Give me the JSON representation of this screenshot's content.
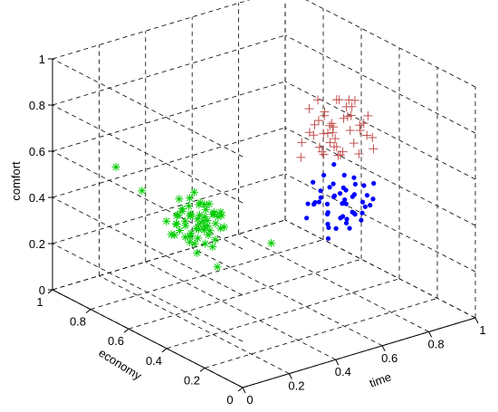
{
  "chart_data": {
    "type": "scatter",
    "projection": "3d",
    "xlabel": "time",
    "ylabel": "economy",
    "zlabel": "comfort",
    "xlim": [
      0,
      1
    ],
    "ylim": [
      0,
      1
    ],
    "zlim": [
      0,
      1
    ],
    "xticks": [
      "0",
      "0.2",
      "0.4",
      "0.6",
      "0.8",
      "1"
    ],
    "yticks": [
      "0",
      "0.2",
      "0.4",
      "0.6",
      "0.8",
      "1"
    ],
    "zticks": [
      "0",
      "0.2",
      "0.4",
      "0.6",
      "0.8",
      "1"
    ],
    "grid": true,
    "series": [
      {
        "marker": "plus",
        "color": "#c0504d",
        "points": [
          [
            0.62,
            0.3,
            0.82
          ],
          [
            0.68,
            0.28,
            0.85
          ],
          [
            0.72,
            0.35,
            0.8
          ],
          [
            0.58,
            0.25,
            0.78
          ],
          [
            0.65,
            0.4,
            0.88
          ],
          [
            0.75,
            0.3,
            0.76
          ],
          [
            0.6,
            0.33,
            0.72
          ],
          [
            0.7,
            0.22,
            0.84
          ],
          [
            0.66,
            0.36,
            0.75
          ],
          [
            0.55,
            0.3,
            0.8
          ],
          [
            0.78,
            0.38,
            0.82
          ],
          [
            0.64,
            0.27,
            0.7
          ],
          [
            0.71,
            0.31,
            0.9
          ],
          [
            0.59,
            0.37,
            0.77
          ],
          [
            0.69,
            0.26,
            0.74
          ],
          [
            0.63,
            0.34,
            0.86
          ],
          [
            0.74,
            0.29,
            0.79
          ],
          [
            0.57,
            0.28,
            0.73
          ],
          [
            0.67,
            0.39,
            0.81
          ],
          [
            0.73,
            0.24,
            0.77
          ],
          [
            0.61,
            0.32,
            0.69
          ],
          [
            0.76,
            0.34,
            0.87
          ],
          [
            0.54,
            0.35,
            0.75
          ],
          [
            0.65,
            0.23,
            0.82
          ],
          [
            0.7,
            0.37,
            0.71
          ],
          [
            0.58,
            0.31,
            0.85
          ],
          [
            0.72,
            0.27,
            0.68
          ],
          [
            0.66,
            0.3,
            0.92
          ],
          [
            0.62,
            0.38,
            0.79
          ],
          [
            0.77,
            0.26,
            0.74
          ],
          [
            0.56,
            0.26,
            0.82
          ],
          [
            0.68,
            0.33,
            0.66
          ],
          [
            0.74,
            0.36,
            0.84
          ],
          [
            0.6,
            0.24,
            0.76
          ],
          [
            0.69,
            0.35,
            0.89
          ],
          [
            0.63,
            0.29,
            0.73
          ],
          [
            0.8,
            0.32,
            0.8
          ],
          [
            0.52,
            0.33,
            0.7
          ],
          [
            0.67,
            0.25,
            0.87
          ],
          [
            0.71,
            0.4,
            0.76
          ],
          [
            0.64,
            0.31,
            0.78
          ],
          [
            0.58,
            0.36,
            0.88
          ],
          [
            0.75,
            0.23,
            0.71
          ],
          [
            0.61,
            0.27,
            0.83
          ],
          [
            0.7,
            0.33,
            0.67
          ]
        ]
      },
      {
        "marker": "dot",
        "color": "#0000ff",
        "points": [
          [
            0.62,
            0.28,
            0.52
          ],
          [
            0.68,
            0.32,
            0.5
          ],
          [
            0.72,
            0.25,
            0.48
          ],
          [
            0.58,
            0.3,
            0.55
          ],
          [
            0.65,
            0.35,
            0.45
          ],
          [
            0.75,
            0.28,
            0.53
          ],
          [
            0.6,
            0.22,
            0.46
          ],
          [
            0.7,
            0.38,
            0.51
          ],
          [
            0.66,
            0.26,
            0.42
          ],
          [
            0.55,
            0.33,
            0.49
          ],
          [
            0.78,
            0.3,
            0.47
          ],
          [
            0.64,
            0.24,
            0.56
          ],
          [
            0.71,
            0.34,
            0.44
          ],
          [
            0.59,
            0.27,
            0.4
          ],
          [
            0.69,
            0.31,
            0.58
          ],
          [
            0.63,
            0.36,
            0.48
          ],
          [
            0.74,
            0.22,
            0.5
          ],
          [
            0.57,
            0.25,
            0.43
          ],
          [
            0.67,
            0.29,
            0.54
          ],
          [
            0.73,
            0.37,
            0.42
          ],
          [
            0.61,
            0.32,
            0.6
          ],
          [
            0.76,
            0.26,
            0.45
          ],
          [
            0.54,
            0.28,
            0.52
          ],
          [
            0.65,
            0.21,
            0.47
          ],
          [
            0.7,
            0.33,
            0.39
          ],
          [
            0.58,
            0.34,
            0.57
          ],
          [
            0.72,
            0.29,
            0.41
          ],
          [
            0.66,
            0.23,
            0.53
          ],
          [
            0.62,
            0.31,
            0.44
          ],
          [
            0.77,
            0.35,
            0.5
          ],
          [
            0.56,
            0.24,
            0.48
          ],
          [
            0.68,
            0.27,
            0.37
          ],
          [
            0.74,
            0.32,
            0.55
          ],
          [
            0.6,
            0.36,
            0.46
          ],
          [
            0.69,
            0.2,
            0.49
          ],
          [
            0.63,
            0.28,
            0.38
          ],
          [
            0.8,
            0.29,
            0.52
          ],
          [
            0.52,
            0.3,
            0.45
          ],
          [
            0.67,
            0.34,
            0.62
          ],
          [
            0.71,
            0.24,
            0.44
          ],
          [
            0.64,
            0.3,
            0.51
          ],
          [
            0.58,
            0.26,
            0.36
          ],
          [
            0.75,
            0.33,
            0.47
          ],
          [
            0.61,
            0.21,
            0.54
          ],
          [
            0.7,
            0.28,
            0.43
          ],
          [
            0.66,
            0.35,
            0.52
          ],
          [
            0.73,
            0.27,
            0.39
          ],
          [
            0.59,
            0.32,
            0.49
          ],
          [
            0.65,
            0.25,
            0.41
          ],
          [
            0.69,
            0.3,
            0.46
          ]
        ]
      },
      {
        "marker": "asterisk",
        "color": "#00cc00",
        "points": [
          [
            0.28,
            0.58,
            0.4
          ],
          [
            0.32,
            0.62,
            0.35
          ],
          [
            0.25,
            0.55,
            0.38
          ],
          [
            0.3,
            0.65,
            0.42
          ],
          [
            0.35,
            0.6,
            0.32
          ],
          [
            0.22,
            0.6,
            0.36
          ],
          [
            0.38,
            0.58,
            0.4
          ],
          [
            0.27,
            0.68,
            0.34
          ],
          [
            0.33,
            0.52,
            0.37
          ],
          [
            0.29,
            0.63,
            0.3
          ],
          [
            0.24,
            0.57,
            0.43
          ],
          [
            0.36,
            0.64,
            0.36
          ],
          [
            0.31,
            0.56,
            0.33
          ],
          [
            0.26,
            0.66,
            0.39
          ],
          [
            0.34,
            0.61,
            0.41
          ],
          [
            0.2,
            0.62,
            0.34
          ],
          [
            0.4,
            0.6,
            0.37
          ],
          [
            0.28,
            0.54,
            0.31
          ],
          [
            0.32,
            0.67,
            0.44
          ],
          [
            0.37,
            0.55,
            0.35
          ],
          [
            0.23,
            0.64,
            0.32
          ],
          [
            0.3,
            0.59,
            0.46
          ],
          [
            0.35,
            0.66,
            0.3
          ],
          [
            0.26,
            0.52,
            0.4
          ],
          [
            0.33,
            0.63,
            0.38
          ],
          [
            0.29,
            0.7,
            0.36
          ],
          [
            0.21,
            0.56,
            0.42
          ],
          [
            0.39,
            0.62,
            0.33
          ],
          [
            0.27,
            0.61,
            0.29
          ],
          [
            0.31,
            0.53,
            0.44
          ],
          [
            0.34,
            0.69,
            0.35
          ],
          [
            0.25,
            0.64,
            0.47
          ],
          [
            0.36,
            0.57,
            0.39
          ],
          [
            0.3,
            0.62,
            0.27
          ],
          [
            0.28,
            0.66,
            0.41
          ],
          [
            0.33,
            0.58,
            0.45
          ],
          [
            0.22,
            0.67,
            0.37
          ],
          [
            0.38,
            0.65,
            0.31
          ],
          [
            0.26,
            0.59,
            0.34
          ],
          [
            0.32,
            0.55,
            0.28
          ],
          [
            0.29,
            0.61,
            0.5
          ],
          [
            0.35,
            0.63,
            0.42
          ],
          [
            0.24,
            0.53,
            0.35
          ],
          [
            0.31,
            0.68,
            0.32
          ],
          [
            0.37,
            0.61,
            0.38
          ],
          [
            0.27,
            0.57,
            0.26
          ],
          [
            0.3,
            0.64,
            0.39
          ],
          [
            0.34,
            0.56,
            0.3
          ],
          [
            0.23,
            0.6,
            0.44
          ],
          [
            0.4,
            0.64,
            0.36
          ],
          [
            0.28,
            0.69,
            0.33
          ],
          [
            0.32,
            0.6,
            0.37
          ],
          [
            0.26,
            0.62,
            0.31
          ],
          [
            0.36,
            0.67,
            0.4
          ],
          [
            0.3,
            0.57,
            0.35
          ],
          [
            0.45,
            0.4,
            0.32
          ],
          [
            0.18,
            0.75,
            0.48
          ],
          [
            0.42,
            0.7,
            0.3
          ],
          [
            0.3,
            0.5,
            0.22
          ],
          [
            0.15,
            0.85,
            0.55
          ]
        ]
      }
    ]
  }
}
